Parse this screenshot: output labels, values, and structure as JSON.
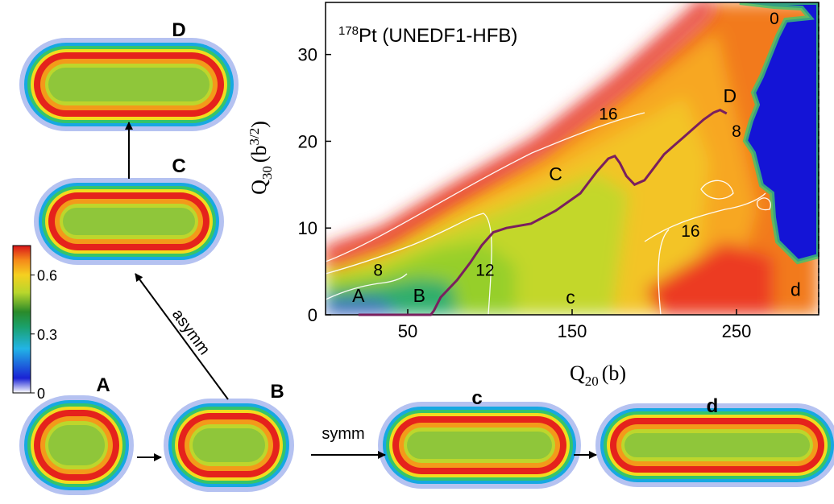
{
  "chart_data": {
    "type": "heatmap",
    "title": "Pt (UNEDF1-HFB)",
    "title_mass_number": "178",
    "xlabel": "Q",
    "xlabel_sub": "20",
    "xlabel_unit": "(b)",
    "ylabel": "Q",
    "ylabel_sub": "30",
    "ylabel_unit": "(b",
    "ylabel_unit_sup": "3/2",
    "ylabel_unit_end": ")",
    "xlim": [
      0,
      300
    ],
    "ylim": [
      0,
      36
    ],
    "xticks": [
      50,
      150,
      250
    ],
    "yticks": [
      0,
      10,
      20,
      30
    ],
    "grid": false,
    "contour_labels": [
      {
        "text": "8",
        "x": 32,
        "y": 4.5
      },
      {
        "text": "12",
        "x": 97,
        "y": 4.5
      },
      {
        "text": "16",
        "x": 172,
        "y": 22.5
      },
      {
        "text": "16",
        "x": 222,
        "y": 9
      },
      {
        "text": "8",
        "x": 250,
        "y": 20.5
      },
      {
        "text": "0",
        "x": 273,
        "y": 33.5
      }
    ],
    "point_labels": [
      {
        "text": "A",
        "x": 20,
        "y": 1.5
      },
      {
        "text": "B",
        "x": 57,
        "y": 1.5
      },
      {
        "text": "C",
        "x": 140,
        "y": 15.5
      },
      {
        "text": "D",
        "x": 246,
        "y": 24.5
      },
      {
        "text": "c",
        "x": 149,
        "y": 1.3
      },
      {
        "text": "d",
        "x": 286,
        "y": 2.2
      }
    ],
    "fission_path": {
      "x": [
        20,
        40,
        58,
        64,
        66,
        70,
        80,
        88,
        95,
        102,
        110,
        125,
        140,
        155,
        165,
        172,
        176,
        179,
        183,
        188,
        194,
        200,
        206,
        212,
        218,
        224,
        230,
        236,
        240,
        244
      ],
      "y": [
        0,
        0,
        0,
        0,
        0.5,
        2,
        4,
        6,
        8,
        9.5,
        10,
        10.5,
        12,
        14,
        16.5,
        18,
        18.3,
        17.5,
        16,
        15,
        15.5,
        17,
        18.5,
        19.5,
        20.5,
        21.5,
        22.5,
        23.3,
        23.6,
        23.2
      ]
    },
    "colorbar": {
      "ticks": [
        0,
        0.3,
        0.6
      ],
      "range": [
        0,
        0.75
      ]
    },
    "path_color": "#7a1f5e",
    "contour_color": "#ffffff"
  },
  "densities": [
    {
      "label": "A",
      "cap_a": 65,
      "cap_b": 56
    },
    {
      "label": "B",
      "cap_a": 75,
      "cap_b": 52
    },
    {
      "label": "c",
      "cap_a": 120,
      "cap_b": 48
    },
    {
      "label": "d",
      "cap_a": 145,
      "cap_b": 46
    },
    {
      "label": "C",
      "cap_a": 112,
      "cap_b": 48
    },
    {
      "label": "D",
      "cap_a": 130,
      "cap_b": 52
    }
  ],
  "arrows": {
    "asymm": "asymm",
    "symm": "symm"
  }
}
